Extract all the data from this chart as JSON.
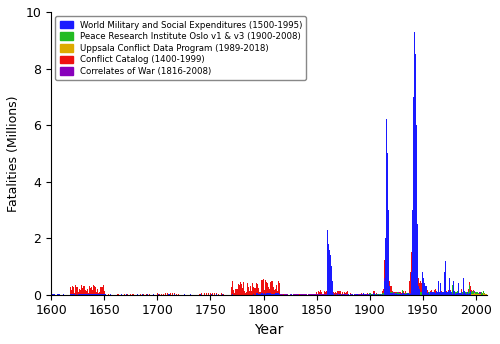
{
  "xlabel": "Year",
  "ylabel": "Fatalities (Millions)",
  "xlim": [
    1600,
    2010
  ],
  "ylim": [
    0,
    10
  ],
  "yticks": [
    0,
    2,
    4,
    6,
    8,
    10
  ],
  "xticks": [
    1600,
    1650,
    1700,
    1750,
    1800,
    1850,
    1900,
    1950,
    2000
  ],
  "colors": {
    "WMSE": "#1a1aff",
    "PRIO": "#22bb22",
    "UCDP": "#ddaa00",
    "CC": "#ee1111",
    "COW": "#8800bb"
  },
  "legend": [
    {
      "label": "World Military and Social Expenditures (1500-1995)",
      "color": "#1a1aff"
    },
    {
      "label": "Peace Research Institute Oslo v1 & v3 (1900-2008)",
      "color": "#22bb22"
    },
    {
      "label": "Uppsala Conflict Data Program (1989-2018)",
      "color": "#ddaa00"
    },
    {
      "label": "Conflict Catalog (1400-1999)",
      "color": "#ee1111"
    },
    {
      "label": "Correlates of War (1816-2008)",
      "color": "#8800bb"
    }
  ],
  "figsize": [
    5.0,
    3.44
  ],
  "dpi": 100
}
